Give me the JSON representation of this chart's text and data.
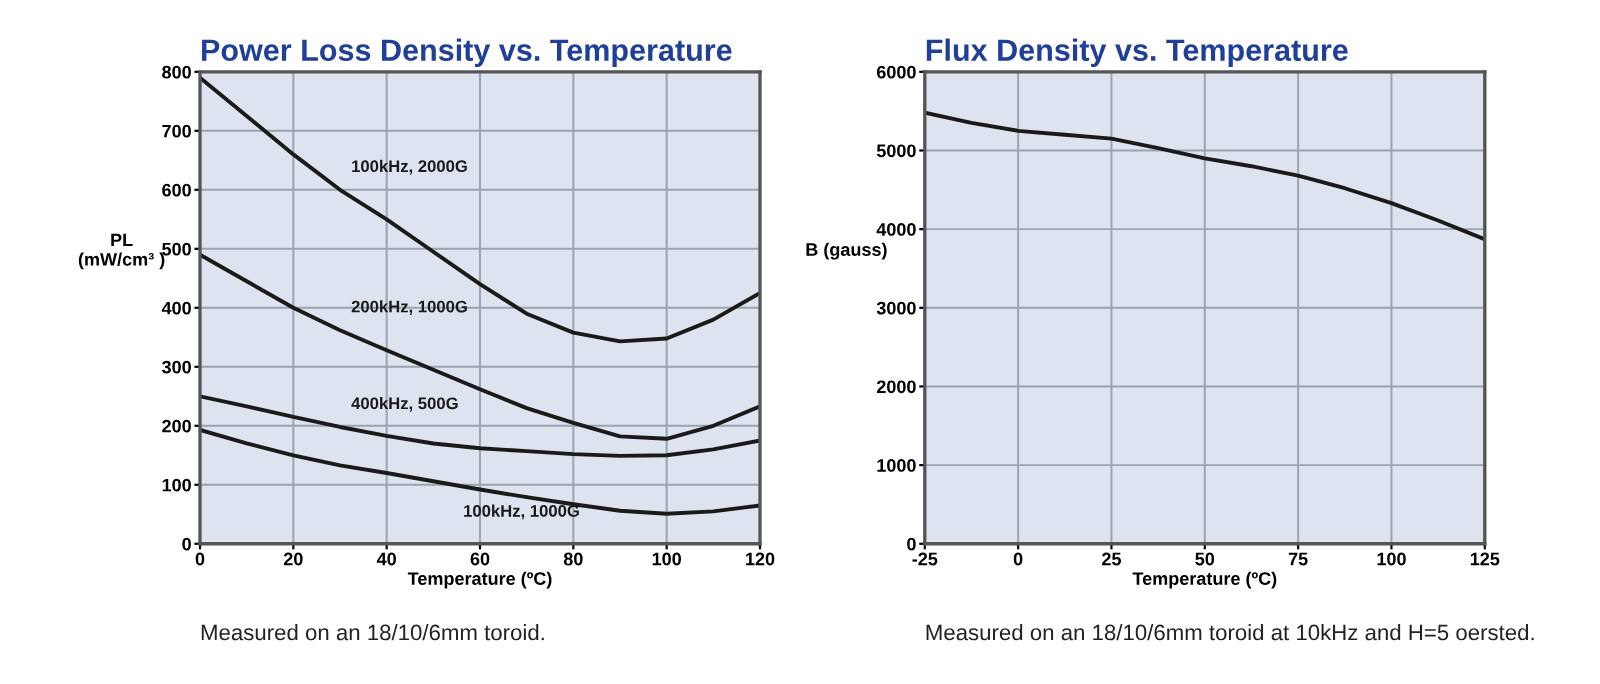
{
  "chart_data": [
    {
      "type": "line",
      "title": "Power Loss Density vs. Temperature",
      "xlabel": "Temperature (ºC)",
      "ylabel": "PL\n(mW/cm³ )",
      "x": [
        0,
        10,
        20,
        30,
        40,
        50,
        60,
        70,
        80,
        90,
        100,
        110,
        120
      ],
      "series": [
        {
          "name": "100kHz, 2000G",
          "color": "#1a1a1a",
          "values": [
            790,
            725,
            660,
            600,
            550,
            495,
            440,
            390,
            358,
            343,
            348,
            380,
            425
          ]
        },
        {
          "name": "200kHz, 1000G",
          "color": "#1a1a1a",
          "values": [
            490,
            445,
            400,
            362,
            328,
            295,
            262,
            230,
            205,
            182,
            178,
            200,
            233
          ]
        },
        {
          "name": "400kHz, 500G",
          "color": "#1a1a1a",
          "values": [
            250,
            233,
            215,
            198,
            183,
            170,
            162,
            157,
            152,
            149,
            150,
            160,
            175
          ]
        },
        {
          "name": "100kHz, 1000G",
          "color": "#1a1a1a",
          "values": [
            193,
            170,
            150,
            133,
            120,
            106,
            92,
            79,
            67,
            56,
            51,
            55,
            65
          ]
        }
      ],
      "xlim": [
        0,
        120
      ],
      "xticks": [
        0,
        20,
        40,
        60,
        80,
        100,
        120
      ],
      "ylim": [
        0,
        800
      ],
      "yticks": [
        0,
        100,
        200,
        300,
        400,
        500,
        600,
        700,
        800
      ],
      "grid": true,
      "legend": false,
      "marker": "none",
      "line_style": "solid",
      "annotations": [
        "Measured on an 18/10/6mm toroid."
      ]
    },
    {
      "type": "line",
      "title": "Flux Density vs. Temperature",
      "xlabel": "Temperature (ºC)",
      "ylabel": "B (gauss)",
      "x": [
        -25,
        -12.5,
        0,
        12.5,
        25,
        37.5,
        50,
        62.5,
        75,
        87.5,
        100,
        112.5,
        125
      ],
      "series": [
        {
          "color": "#1a1a1a",
          "values": [
            5480,
            5350,
            5250,
            5200,
            5150,
            5030,
            4900,
            4800,
            4680,
            4520,
            4330,
            4110,
            3870
          ]
        }
      ],
      "xlim": [
        -25,
        125
      ],
      "xticks": [
        -25,
        0,
        25,
        50,
        75,
        100,
        125
      ],
      "ylim": [
        0,
        6000
      ],
      "yticks": [
        0,
        1000,
        2000,
        3000,
        4000,
        5000,
        6000
      ],
      "grid": true,
      "legend": false,
      "marker": "none",
      "line_style": "solid",
      "annotations": [
        "Measured on an 18/10/6mm toroid at 10kHz and H=5 oersted."
      ]
    }
  ]
}
